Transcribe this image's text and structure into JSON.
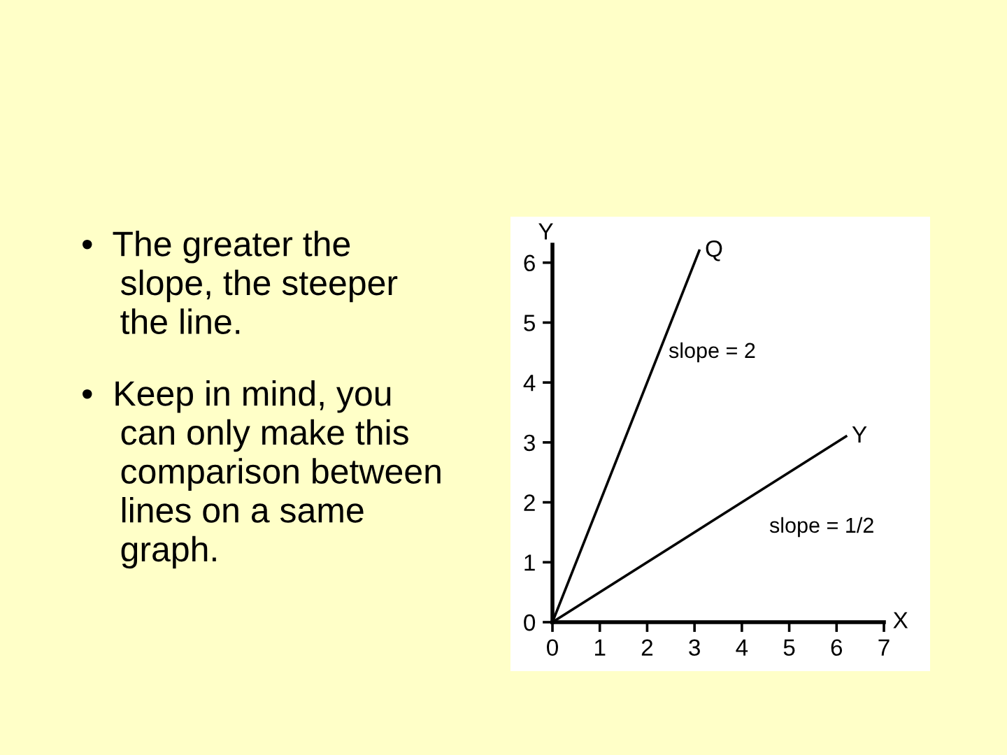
{
  "chart_data": {
    "type": "line",
    "xlabel": "X",
    "ylabel": "Y",
    "xlim": [
      0,
      7
    ],
    "ylim": [
      0,
      6.3
    ],
    "xticks": [
      0,
      1,
      2,
      3,
      4,
      5,
      6,
      7
    ],
    "yticks": [
      0,
      1,
      2,
      3,
      4,
      5,
      6
    ],
    "series": [
      {
        "name": "Q",
        "color": "#000000",
        "x": [
          0,
          3.1
        ],
        "values": [
          0,
          6.2
        ]
      },
      {
        "name": "Y",
        "color": "#000000",
        "x": [
          0,
          6.2
        ],
        "values": [
          0,
          3.1
        ]
      }
    ],
    "marker": "none",
    "line_style": "solid",
    "grid": false,
    "legend": false,
    "annotations": [
      "•  The greater the\n    slope, the steeper\n    the line.",
      "•  Keep in mind, you\n    can only make this\n    comparison between\n    lines on a same\n    graph.",
      "slope = 2",
      "slope = 1/2"
    ]
  }
}
